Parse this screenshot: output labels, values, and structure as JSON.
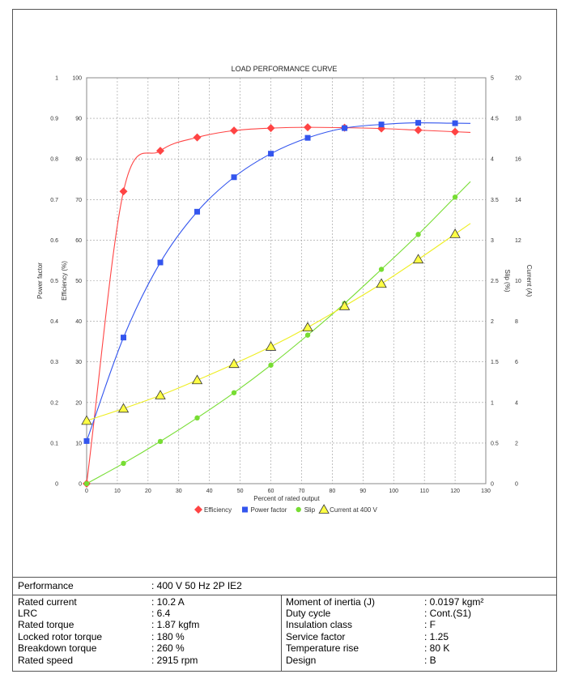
{
  "chart_data": {
    "type": "line",
    "title": "LOAD PERFORMANCE CURVE",
    "xlabel": "Percent of rated output",
    "xlim": [
      0,
      130
    ],
    "x_ticks": [
      "0",
      "10",
      "20",
      "30",
      "40",
      "50",
      "60",
      "70",
      "80",
      "90",
      "100",
      "110",
      "120",
      "130"
    ],
    "axes": {
      "power_factor": {
        "label": "Power factor",
        "lim": [
          0,
          1
        ],
        "ticks": [
          "0",
          "0.1",
          "0.2",
          "0.3",
          "0.4",
          "0.5",
          "0.6",
          "0.7",
          "0.8",
          "0.9",
          "1"
        ]
      },
      "efficiency": {
        "label": "Efficiency (%)",
        "lim": [
          0,
          100
        ],
        "ticks": [
          "0",
          "10",
          "20",
          "30",
          "40",
          "50",
          "60",
          "70",
          "80",
          "90",
          "100"
        ]
      },
      "slip": {
        "label": "Slip (%)",
        "lim": [
          0,
          5
        ],
        "ticks": [
          "0",
          "0.5",
          "1",
          "1.5",
          "2",
          "2.5",
          "3",
          "3.5",
          "4",
          "4.5",
          "5"
        ]
      },
      "current": {
        "label": "Current (A)",
        "lim": [
          0,
          20
        ],
        "ticks": [
          "0",
          "2",
          "4",
          "6",
          "8",
          "10",
          "12",
          "14",
          "16",
          "18",
          "20"
        ]
      }
    },
    "grid": true,
    "legend_position": "bottom",
    "series": [
      {
        "name": "Efficiency",
        "axis": "efficiency",
        "color": "#ff4444",
        "marker": "diamond",
        "x": [
          0,
          12,
          24,
          36,
          48,
          60,
          72,
          84,
          96,
          108,
          120
        ],
        "y": [
          0,
          72,
          82,
          85.3,
          87,
          87.6,
          87.8,
          87.7,
          87.5,
          87.1,
          86.7
        ]
      },
      {
        "name": "Power factor",
        "axis": "power_factor",
        "color": "#3355ee",
        "marker": "square",
        "x": [
          0,
          12,
          24,
          36,
          48,
          60,
          72,
          84,
          96,
          108,
          120
        ],
        "y": [
          0.105,
          0.36,
          0.545,
          0.67,
          0.755,
          0.813,
          0.852,
          0.876,
          0.885,
          0.889,
          0.888
        ]
      },
      {
        "name": "Slip",
        "axis": "slip",
        "color": "#77dd33",
        "marker": "circle",
        "x": [
          0,
          12,
          24,
          36,
          48,
          60,
          72,
          84,
          96,
          108,
          120
        ],
        "y": [
          0,
          0.25,
          0.52,
          0.81,
          1.12,
          1.46,
          1.83,
          2.22,
          2.64,
          3.07,
          3.53
        ]
      },
      {
        "name": "Current at 400 V",
        "axis": "current",
        "color": "#ffff44",
        "marker": "triangle",
        "x": [
          0,
          12,
          24,
          36,
          48,
          60,
          72,
          84,
          96,
          108,
          120
        ],
        "y": [
          3.1,
          3.7,
          4.35,
          5.1,
          5.9,
          6.75,
          7.7,
          8.75,
          9.85,
          11.05,
          12.3
        ]
      }
    ]
  },
  "specs": {
    "performance_label": "Performance",
    "performance_value": ": 400 V 50 Hz 2P IE2",
    "left": [
      {
        "label": "Rated current",
        "value": ": 10.2 A"
      },
      {
        "label": "LRC",
        "value": ": 6.4"
      },
      {
        "label": "Rated torque",
        "value": ": 1.87 kgfm"
      },
      {
        "label": "Locked rotor torque",
        "value": ": 180 %"
      },
      {
        "label": "Breakdown torque",
        "value": ": 260 %"
      },
      {
        "label": "Rated speed",
        "value": ": 2915 rpm"
      }
    ],
    "right": [
      {
        "label": "Moment of inertia (J)",
        "value": ": 0.0197 kgm²"
      },
      {
        "label": "Duty cycle",
        "value": ": Cont.(S1)"
      },
      {
        "label": "Insulation class",
        "value": ": F"
      },
      {
        "label": "Service factor",
        "value": ": 1.25"
      },
      {
        "label": "Temperature rise",
        "value": ": 80 K"
      },
      {
        "label": "Design",
        "value": ": B"
      }
    ]
  }
}
